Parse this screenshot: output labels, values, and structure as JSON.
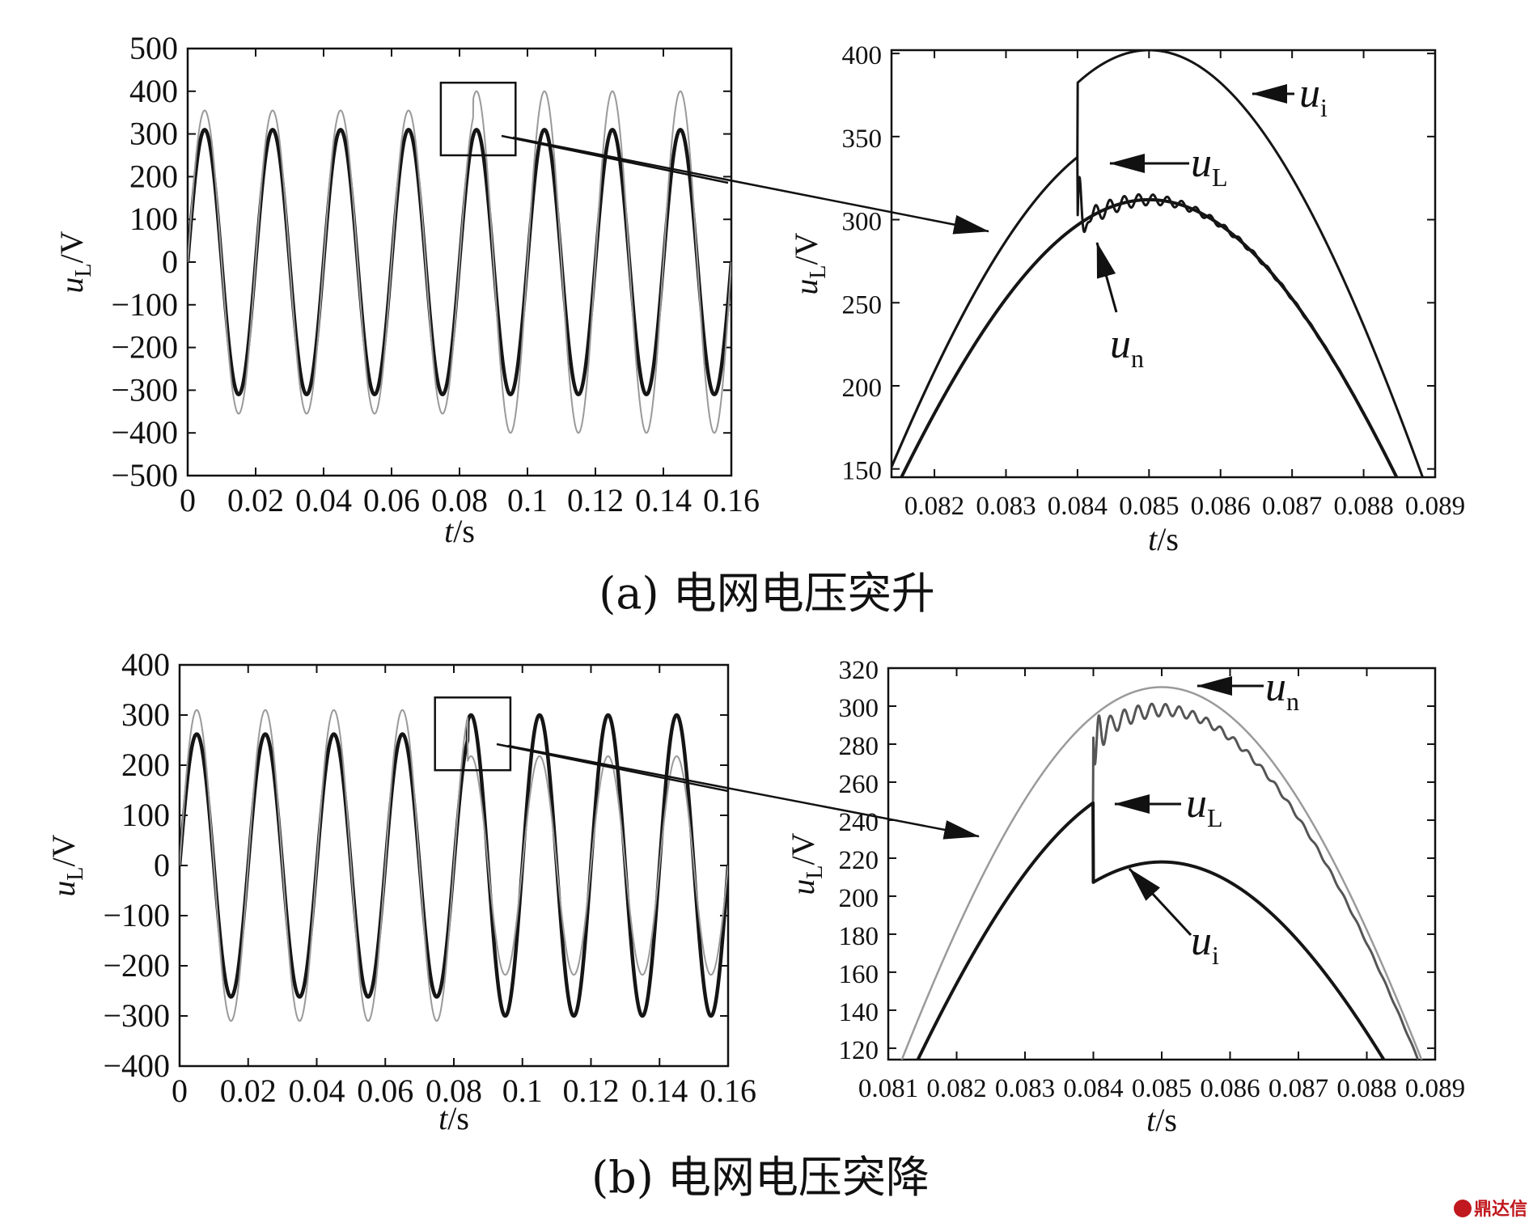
{
  "chart_data": [
    {
      "id": "a_full",
      "type": "line",
      "ylabel": "u_L/V",
      "ylabel_main": "u",
      "ylabel_sub": "L",
      "ylabel_unit": "/V",
      "xlabel": "t/s",
      "xlabel_var": "t",
      "xlabel_unit": "/s",
      "xlim": [
        0,
        0.16
      ],
      "ylim": [
        -500,
        500
      ],
      "yticks": [
        500,
        400,
        300,
        200,
        100,
        0,
        -100,
        -200,
        -300,
        -400,
        -500
      ],
      "ytick_labels": [
        "500",
        "400",
        "300",
        "200",
        "100",
        "0",
        "−100",
        "−200",
        "−300",
        "−400",
        "−500"
      ],
      "xticks": [
        0,
        0.02,
        0.04,
        0.06,
        0.08,
        0.1,
        0.12,
        0.14,
        0.16
      ],
      "xtick_labels": [
        "0",
        "0.02",
        "0.04",
        "0.06",
        "0.08",
        "0.1",
        "0.12",
        "0.14",
        "0.16"
      ],
      "event_time": 0.084,
      "series": [
        {
          "name": "u_L",
          "amp_before": 310,
          "amp_after": 310,
          "freq_hz": 50,
          "style": "solid-thick"
        },
        {
          "name": "u_i",
          "amp_before": 355,
          "amp_after": 400,
          "freq_hz": 50,
          "style": "thin-gray"
        }
      ],
      "zoom_box": {
        "x": [
          0.0745,
          0.0965
        ],
        "y": [
          250,
          420
        ]
      }
    },
    {
      "id": "a_zoom",
      "type": "line",
      "ylabel": "u_L/V",
      "ylabel_main": "u",
      "ylabel_sub": "L",
      "ylabel_unit": "/V",
      "xlabel": "t/s",
      "xlabel_var": "t",
      "xlabel_unit": "/s",
      "xlim": [
        0.0814,
        0.089
      ],
      "ylim": [
        145,
        402
      ],
      "yticks": [
        400,
        350,
        300,
        250,
        200,
        150
      ],
      "ytick_labels": [
        "400",
        "350",
        "300",
        "250",
        "200",
        "150"
      ],
      "xticks": [
        0.082,
        0.083,
        0.084,
        0.085,
        0.086,
        0.087,
        0.088,
        0.089
      ],
      "xtick_labels": [
        "0.082",
        "0.083",
        "0.084",
        "0.085",
        "0.086",
        "0.087",
        "0.088",
        "0.089"
      ],
      "event_time": 0.084,
      "peak_time": 0.085,
      "series": [
        {
          "name": "u_i",
          "amp_before": 355,
          "amp_after": 402,
          "style": "solid"
        },
        {
          "name": "u_L",
          "amp_before": 355,
          "amp_after": 312,
          "style": "ripple"
        },
        {
          "name": "u_n",
          "amp_before": 312,
          "amp_after": 312,
          "style": "solid-thick"
        }
      ],
      "annotations": [
        {
          "main": "u",
          "sub": "i"
        },
        {
          "main": "u",
          "sub": "L"
        },
        {
          "main": "u",
          "sub": "n"
        }
      ]
    },
    {
      "id": "b_full",
      "type": "line",
      "ylabel": "u_L/V",
      "ylabel_main": "u",
      "ylabel_sub": "L",
      "ylabel_unit": "/V",
      "xlabel": "t/s",
      "xlabel_var": "t",
      "xlabel_unit": "/s",
      "xlim": [
        0,
        0.16
      ],
      "ylim": [
        -400,
        400
      ],
      "yticks": [
        400,
        300,
        200,
        100,
        0,
        -100,
        -200,
        -300,
        -400
      ],
      "ytick_labels": [
        "400",
        "300",
        "200",
        "100",
        "0",
        "−100",
        "−200",
        "−300",
        "−400"
      ],
      "xticks": [
        0,
        0.02,
        0.04,
        0.06,
        0.08,
        0.1,
        0.12,
        0.14,
        0.16
      ],
      "xtick_labels": [
        "0",
        "0.02",
        "0.04",
        "0.06",
        "0.08",
        "0.1",
        "0.12",
        "0.14",
        "0.16"
      ],
      "event_time": 0.084,
      "series": [
        {
          "name": "u_L",
          "amp_before": 262,
          "amp_after": 300,
          "freq_hz": 50,
          "style": "solid-thick"
        },
        {
          "name": "u_i",
          "amp_before": 310,
          "amp_after": 218,
          "freq_hz": 50,
          "style": "thin-gray"
        }
      ],
      "zoom_box": {
        "x": [
          0.0745,
          0.0965
        ],
        "y": [
          190,
          335
        ]
      }
    },
    {
      "id": "b_zoom",
      "type": "line",
      "ylabel": "u_L/V",
      "ylabel_main": "u",
      "ylabel_sub": "L",
      "ylabel_unit": "/V",
      "xlabel": "t/s",
      "xlabel_var": "t",
      "xlabel_unit": "/s",
      "xlim": [
        0.081,
        0.089
      ],
      "ylim": [
        114,
        320
      ],
      "yticks": [
        320,
        300,
        280,
        260,
        240,
        220,
        200,
        180,
        160,
        140,
        120
      ],
      "ytick_labels": [
        "320",
        "300",
        "280",
        "260",
        "240",
        "220",
        "200",
        "180",
        "160",
        "140",
        "120"
      ],
      "xticks": [
        0.081,
        0.082,
        0.083,
        0.084,
        0.085,
        0.086,
        0.087,
        0.088,
        0.089
      ],
      "xtick_labels": [
        "0.081",
        "0.082",
        "0.083",
        "0.084",
        "0.085",
        "0.086",
        "0.087",
        "0.088",
        "0.089"
      ],
      "event_time": 0.084,
      "peak_time": 0.085,
      "series": [
        {
          "name": "u_n",
          "amp_before": 310,
          "amp_after": 310,
          "style": "thin-gray"
        },
        {
          "name": "u_L",
          "amp_before": 262,
          "amp_after": 298,
          "style": "ripple"
        },
        {
          "name": "u_i",
          "amp_before": 262,
          "amp_after": 218,
          "style": "solid-thick"
        }
      ],
      "annotations": [
        {
          "main": "u",
          "sub": "n"
        },
        {
          "main": "u",
          "sub": "L"
        },
        {
          "main": "u",
          "sub": "i"
        }
      ]
    }
  ],
  "captions": {
    "a": "(a) 电网电压突升",
    "b": "(b) 电网电压突降"
  },
  "watermark": "鼎达信",
  "colors": {
    "axis": "#111111",
    "primary_line": "#151515",
    "secondary_line": "#555555",
    "faint_line": "#9a9a9a",
    "watermark": "#c0181e"
  }
}
